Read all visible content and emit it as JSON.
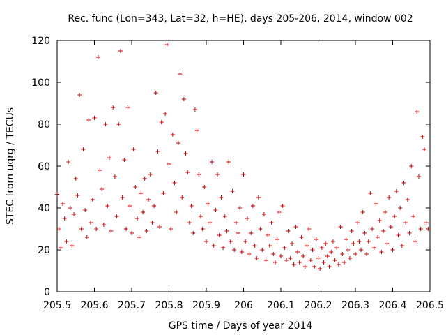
{
  "chart_data": {
    "type": "scatter",
    "title": "Rec. func (Lon=343, Lat=32, h=HE), days 205-206, 2014, window 002",
    "xlabel": "GPS time / Days of year 2014",
    "ylabel": "STEC from uqrg / TECUs",
    "xlim": [
      205.5,
      206.5
    ],
    "ylim": [
      0,
      120
    ],
    "xticks": [
      "205.5",
      "205.6",
      "205.7",
      "205.8",
      "205.9",
      "206",
      "206.1",
      "206.2",
      "206.3",
      "206.4",
      "206.5"
    ],
    "yticks": [
      "0",
      "20",
      "40",
      "60",
      "80",
      "100",
      "120"
    ],
    "grid": false,
    "marker": "+",
    "color": "#cc0000",
    "points": [
      [
        205.5,
        46.5
      ],
      [
        205.505,
        30
      ],
      [
        205.51,
        21
      ],
      [
        205.515,
        42
      ],
      [
        205.52,
        35
      ],
      [
        205.525,
        24
      ],
      [
        205.53,
        62
      ],
      [
        205.535,
        40
      ],
      [
        205.54,
        22
      ],
      [
        205.545,
        37
      ],
      [
        205.55,
        54
      ],
      [
        205.555,
        46
      ],
      [
        205.56,
        94
      ],
      [
        205.565,
        30
      ],
      [
        205.57,
        68
      ],
      [
        205.575,
        39
      ],
      [
        205.58,
        26
      ],
      [
        205.585,
        82
      ],
      [
        205.59,
        33
      ],
      [
        205.595,
        44
      ],
      [
        205.6,
        83
      ],
      [
        205.605,
        30
      ],
      [
        205.61,
        112
      ],
      [
        205.615,
        58
      ],
      [
        205.62,
        49
      ],
      [
        205.625,
        32
      ],
      [
        205.63,
        80
      ],
      [
        205.635,
        41
      ],
      [
        205.64,
        64
      ],
      [
        205.645,
        29
      ],
      [
        205.65,
        88
      ],
      [
        205.655,
        55
      ],
      [
        205.66,
        36
      ],
      [
        205.665,
        80
      ],
      [
        205.67,
        115
      ],
      [
        205.675,
        45
      ],
      [
        205.68,
        63
      ],
      [
        205.685,
        30
      ],
      [
        205.69,
        88
      ],
      [
        205.695,
        41
      ],
      [
        205.7,
        28
      ],
      [
        205.705,
        68
      ],
      [
        205.71,
        50
      ],
      [
        205.715,
        35
      ],
      [
        205.72,
        26
      ],
      [
        205.725,
        47
      ],
      [
        205.73,
        38
      ],
      [
        205.735,
        54
      ],
      [
        205.74,
        29
      ],
      [
        205.745,
        44
      ],
      [
        205.75,
        56
      ],
      [
        205.755,
        33
      ],
      [
        205.76,
        41
      ],
      [
        205.765,
        95
      ],
      [
        205.77,
        67
      ],
      [
        205.775,
        31
      ],
      [
        205.78,
        81
      ],
      [
        205.785,
        47
      ],
      [
        205.79,
        85
      ],
      [
        205.795,
        118
      ],
      [
        205.8,
        61
      ],
      [
        205.805,
        30
      ],
      [
        205.81,
        75
      ],
      [
        205.815,
        52
      ],
      [
        205.82,
        38
      ],
      [
        205.825,
        71
      ],
      [
        205.83,
        104
      ],
      [
        205.835,
        45
      ],
      [
        205.84,
        92
      ],
      [
        205.845,
        66
      ],
      [
        205.85,
        57
      ],
      [
        205.855,
        33
      ],
      [
        205.86,
        41
      ],
      [
        205.865,
        28
      ],
      [
        205.87,
        87
      ],
      [
        205.875,
        77
      ],
      [
        205.88,
        56
      ],
      [
        205.885,
        36
      ],
      [
        205.89,
        30
      ],
      [
        205.895,
        50
      ],
      [
        205.9,
        24
      ],
      [
        205.905,
        42
      ],
      [
        205.91,
        33
      ],
      [
        205.915,
        62
      ],
      [
        205.92,
        22
      ],
      [
        205.925,
        39
      ],
      [
        205.93,
        56
      ],
      [
        205.935,
        27
      ],
      [
        205.94,
        45
      ],
      [
        205.945,
        21
      ],
      [
        205.95,
        36
      ],
      [
        205.955,
        29
      ],
      [
        205.96,
        62
      ],
      [
        205.965,
        24
      ],
      [
        205.97,
        48
      ],
      [
        205.975,
        20
      ],
      [
        205.98,
        33
      ],
      [
        205.985,
        28
      ],
      [
        205.99,
        40
      ],
      [
        205.995,
        19
      ],
      [
        206.0,
        56
      ],
      [
        206.005,
        24
      ],
      [
        206.01,
        35
      ],
      [
        206.015,
        18
      ],
      [
        206.02,
        28
      ],
      [
        206.025,
        41
      ],
      [
        206.03,
        22
      ],
      [
        206.035,
        16
      ],
      [
        206.04,
        45
      ],
      [
        206.045,
        30
      ],
      [
        206.05,
        20
      ],
      [
        206.055,
        37
      ],
      [
        206.06,
        15
      ],
      [
        206.065,
        27
      ],
      [
        206.07,
        22
      ],
      [
        206.075,
        33
      ],
      [
        206.08,
        18
      ],
      [
        206.085,
        14
      ],
      [
        206.09,
        25
      ],
      [
        206.095,
        38
      ],
      [
        206.1,
        17
      ],
      [
        206.105,
        41
      ],
      [
        206.11,
        21
      ],
      [
        206.115,
        15
      ],
      [
        206.12,
        29
      ],
      [
        206.125,
        16
      ],
      [
        206.13,
        23
      ],
      [
        206.135,
        13
      ],
      [
        206.14,
        31
      ],
      [
        206.145,
        19
      ],
      [
        206.15,
        14
      ],
      [
        206.155,
        26
      ],
      [
        206.16,
        17
      ],
      [
        206.165,
        12
      ],
      [
        206.17,
        22
      ],
      [
        206.175,
        30
      ],
      [
        206.18,
        15
      ],
      [
        206.185,
        20
      ],
      [
        206.19,
        12
      ],
      [
        206.195,
        25
      ],
      [
        206.2,
        16
      ],
      [
        206.205,
        11
      ],
      [
        206.21,
        21
      ],
      [
        206.215,
        14
      ],
      [
        206.22,
        23
      ],
      [
        206.225,
        17
      ],
      [
        206.23,
        12
      ],
      [
        206.235,
        19
      ],
      [
        206.24,
        24
      ],
      [
        206.245,
        15
      ],
      [
        206.25,
        21
      ],
      [
        206.255,
        13
      ],
      [
        206.26,
        31
      ],
      [
        206.265,
        18
      ],
      [
        206.27,
        14
      ],
      [
        206.275,
        25
      ],
      [
        206.28,
        20
      ],
      [
        206.285,
        16
      ],
      [
        206.29,
        29
      ],
      [
        206.295,
        23
      ],
      [
        206.3,
        18
      ],
      [
        206.305,
        33
      ],
      [
        206.31,
        24
      ],
      [
        206.315,
        20
      ],
      [
        206.32,
        38
      ],
      [
        206.325,
        28
      ],
      [
        206.33,
        18
      ],
      [
        206.335,
        24
      ],
      [
        206.34,
        47
      ],
      [
        206.345,
        30
      ],
      [
        206.35,
        21
      ],
      [
        206.355,
        42
      ],
      [
        206.36,
        26
      ],
      [
        206.365,
        34
      ],
      [
        206.37,
        19
      ],
      [
        206.375,
        29
      ],
      [
        206.38,
        38
      ],
      [
        206.385,
        23
      ],
      [
        206.39,
        45
      ],
      [
        206.395,
        31
      ],
      [
        206.4,
        20
      ],
      [
        206.405,
        36
      ],
      [
        206.41,
        48
      ],
      [
        206.415,
        27
      ],
      [
        206.42,
        40
      ],
      [
        206.425,
        22
      ],
      [
        206.43,
        52
      ],
      [
        206.435,
        33
      ],
      [
        206.44,
        44
      ],
      [
        206.445,
        28
      ],
      [
        206.45,
        60
      ],
      [
        206.455,
        36
      ],
      [
        206.46,
        24
      ],
      [
        206.465,
        86
      ],
      [
        206.47,
        55
      ],
      [
        206.475,
        30
      ],
      [
        206.48,
        74
      ],
      [
        206.485,
        68
      ],
      [
        206.49,
        33
      ],
      [
        206.495,
        30
      ]
    ]
  }
}
